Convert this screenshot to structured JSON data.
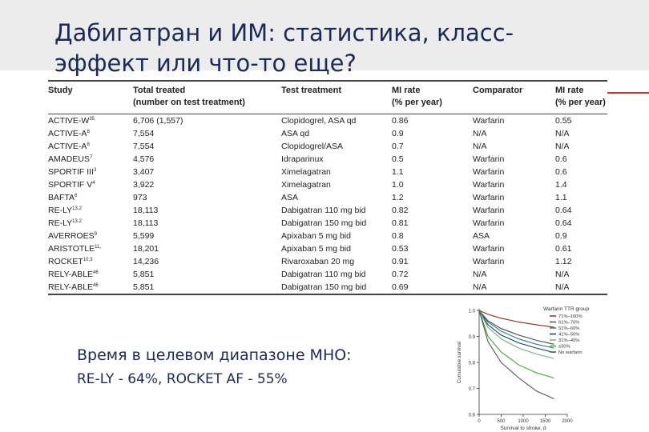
{
  "slide": {
    "title_line1": "Дабигатран и ИМ: статистика, класс-",
    "title_line2": "эффект или что-то еще?",
    "inr_line1": "Время в целевом диапазоне МНО:",
    "inr_line2": "RE-LY - 64%, ROCKET AF - 55%"
  },
  "table": {
    "headers": {
      "study": "Study",
      "total_line1": "Total treated",
      "total_line2": "(number on test treatment)",
      "test": "Test treatment",
      "mi_line1": "MI rate",
      "mi_line2": "(% per year)",
      "comparator": "Comparator",
      "mi2_line1": "MI rate",
      "mi2_line2": "(% per year)"
    },
    "rows": [
      {
        "study": "ACTIVE-W",
        "ref": "35",
        "total": "6,706 (1,557)",
        "test": "Clopidogrel, ASA qd",
        "mi": "0.86",
        "comparator": "Warfarin",
        "mi2": "0.55"
      },
      {
        "study": "ACTIVE-A",
        "ref": "8",
        "total": "7,554",
        "test": "ASA qd",
        "mi": "0.9",
        "comparator": "N/A",
        "mi2": "N/A"
      },
      {
        "study": "ACTIVE-A",
        "ref": "8",
        "total": "7,554",
        "test": "Clopidogrel/ASA",
        "mi": "0.7",
        "comparator": "N/A",
        "mi2": "N/A"
      },
      {
        "study": "AMADEUS",
        "ref": "7",
        "total": "4,576",
        "test": "Idraparinux",
        "mi": "0.5",
        "comparator": "Warfarin",
        "mi2": "0.6"
      },
      {
        "study": "SPORTIF III",
        "ref": "3",
        "total": "3,407",
        "test": "Ximelagatran",
        "mi": "1.1",
        "comparator": "Warfarin",
        "mi2": "0.6"
      },
      {
        "study": "SPORTIF V",
        "ref": "4",
        "total": "3,922",
        "test": "Ximelagatran",
        "mi": "1.0",
        "comparator": "Warfarin",
        "mi2": "1.4"
      },
      {
        "study": "BAFTA",
        "ref": "6",
        "total": "973",
        "test": "ASA",
        "mi": "1.2",
        "comparator": "Warfarin",
        "mi2": "1.1"
      },
      {
        "study": "RE-LY",
        "ref": "13,2",
        "total": "18,113",
        "test": "Dabigatran 110 mg bid",
        "mi": "0.82",
        "comparator": "Warfarin",
        "mi2": "0.64"
      },
      {
        "study": "RE-LY",
        "ref": "13,2",
        "total": "18,113",
        "test": "Dabigatran 150 mg bid",
        "mi": "0.81",
        "comparator": "Warfarin",
        "mi2": "0.64"
      },
      {
        "study": "AVERROES",
        "ref": "9",
        "total": "5,599",
        "test": "Apixaban 5 mg bid",
        "mi": "0.8",
        "comparator": "ASA",
        "mi2": "0.9"
      },
      {
        "study": "ARISTOTLE",
        "ref": "11,",
        "total": "18,201",
        "test": "Apixaban 5 mg bid",
        "mi": "0.53",
        "comparator": "Warfarin",
        "mi2": "0.61"
      },
      {
        "study": "ROCKET",
        "ref": "10,3",
        "total": "14,236",
        "test": "Rivaroxaban 20 mg",
        "mi": "0.91",
        "comparator": "Warfarin",
        "mi2": "1.12"
      },
      {
        "study": "RELY-ABLE",
        "ref": "46",
        "total": "5,851",
        "test": "Dabigatran 110 mg bid",
        "mi": "0.72",
        "comparator": "N/A",
        "mi2": "N/A"
      },
      {
        "study": "RELY-ABLE",
        "ref": "46",
        "total": "5,851",
        "test": "Dabigatran 150 mg bid",
        "mi": "0.69",
        "comparator": "N/A",
        "mi2": "N/A"
      }
    ]
  },
  "chart_data": {
    "type": "line",
    "title": "",
    "xlabel": "Survival to stroke, d",
    "ylabel": "Cumulative survival",
    "xlim": [
      0,
      2000
    ],
    "ylim": [
      0.6,
      1.0
    ],
    "x_ticks": [
      "0",
      "500",
      "1000",
      "1500",
      "2000"
    ],
    "y_ticks": [
      "0.6",
      "0.7",
      "0.8",
      "0.9",
      "1.0"
    ],
    "legend_title": "Warfarin TTR group",
    "legend_position": "top-right",
    "grid": false,
    "series": [
      {
        "name": "71%–100%",
        "color": "#8a2a1e",
        "points": [
          [
            0,
            1.0
          ],
          [
            200,
            0.985
          ],
          [
            500,
            0.97
          ],
          [
            900,
            0.955
          ],
          [
            1300,
            0.945
          ],
          [
            1700,
            0.935
          ]
        ]
      },
      {
        "name": "61%–70%",
        "color": "#4a4a4a",
        "points": [
          [
            0,
            1.0
          ],
          [
            200,
            0.96
          ],
          [
            500,
            0.93
          ],
          [
            900,
            0.905
          ],
          [
            1300,
            0.885
          ],
          [
            1700,
            0.87
          ]
        ]
      },
      {
        "name": "51%–60%",
        "color": "#2e7d8f",
        "points": [
          [
            0,
            1.0
          ],
          [
            200,
            0.955
          ],
          [
            500,
            0.92
          ],
          [
            900,
            0.89
          ],
          [
            1300,
            0.87
          ],
          [
            1700,
            0.855
          ]
        ]
      },
      {
        "name": "41%–50%",
        "color": "#1e3a78",
        "points": [
          [
            0,
            1.0
          ],
          [
            200,
            0.945
          ],
          [
            500,
            0.905
          ],
          [
            900,
            0.875
          ],
          [
            1300,
            0.855
          ],
          [
            1700,
            0.838
          ]
        ]
      },
      {
        "name": "31%–40%",
        "color": "#6fb26a",
        "points": [
          [
            0,
            1.0
          ],
          [
            200,
            0.935
          ],
          [
            500,
            0.89
          ],
          [
            900,
            0.855
          ],
          [
            1300,
            0.832
          ],
          [
            1700,
            0.815
          ]
        ]
      },
      {
        "name": "≤30%",
        "color": "#3fa03c",
        "points": [
          [
            0,
            1.0
          ],
          [
            200,
            0.9
          ],
          [
            500,
            0.84
          ],
          [
            900,
            0.79
          ],
          [
            1300,
            0.76
          ],
          [
            1700,
            0.74
          ]
        ]
      },
      {
        "name": "No warfarin",
        "color": "#555555",
        "points": [
          [
            0,
            1.0
          ],
          [
            200,
            0.88
          ],
          [
            500,
            0.8
          ],
          [
            900,
            0.74
          ],
          [
            1300,
            0.69
          ],
          [
            1700,
            0.66
          ]
        ]
      }
    ]
  }
}
